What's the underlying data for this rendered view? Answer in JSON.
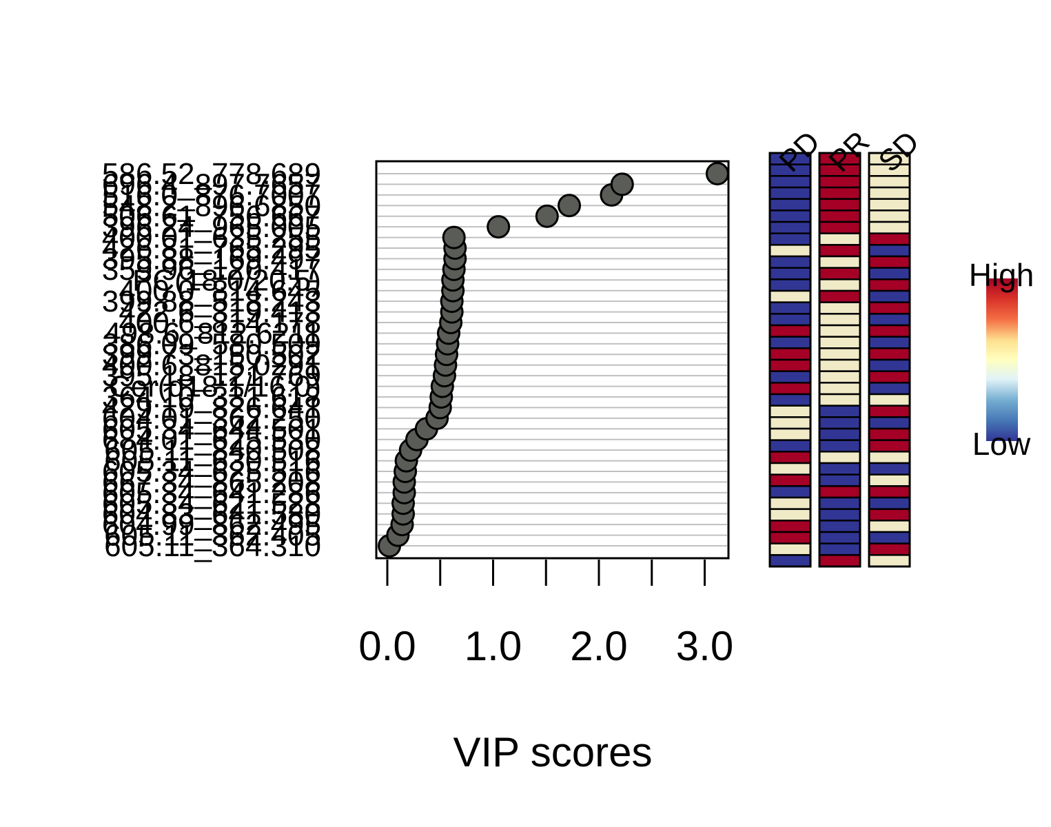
{
  "chart_data": {
    "type": "scatter",
    "xlabel": "VIP scores",
    "x_ticks": [
      "0.0",
      "1.0",
      "2.0",
      "3.0"
    ],
    "xlim": [
      0,
      3.2
    ],
    "features": [
      {
        "label": "586.52_778.689",
        "vip": 3.12,
        "groups": [
          "low",
          "high",
          "mid"
        ]
      },
      {
        "label": "696.4_897.7657",
        "vip": 2.22,
        "groups": [
          "low",
          "high",
          "mid"
        ]
      },
      {
        "label": "516.0_876.7007",
        "vip": 2.12,
        "groups": [
          "low",
          "high",
          "mid"
        ]
      },
      {
        "label": "548.2_896.6850",
        "vip": 1.72,
        "groups": [
          "low",
          "high",
          "mid"
        ]
      },
      {
        "label": "506.61_756.667",
        "vip": 1.51,
        "groups": [
          "low",
          "high",
          "mid"
        ]
      },
      {
        "label": "396.24_965.005",
        "vip": 1.05,
        "groups": [
          "low",
          "high",
          "mid"
        ]
      },
      {
        "label": "400.01_635.255",
        "vip": 0.63,
        "groups": [
          "low",
          "high",
          "mid"
        ]
      },
      {
        "label": "426.81_765.295",
        "vip": 0.64,
        "groups": [
          "low",
          "mid",
          "high"
        ]
      },
      {
        "label": "395.88_169.497",
        "vip": 0.64,
        "groups": [
          "mid",
          "high",
          "low"
        ]
      },
      {
        "label": "359.96_120.417",
        "vip": 0.63,
        "groups": [
          "low",
          "mid",
          "high"
        ]
      },
      {
        "label": "PC(18:0/20:5)",
        "vip": 0.62,
        "groups": [
          "low",
          "high",
          "low"
        ]
      },
      {
        "label": "400.0_814.645",
        "vip": 0.62,
        "groups": [
          "low",
          "mid",
          "high"
        ]
      },
      {
        "label": "399.88_518.243",
        "vip": 0.61,
        "groups": [
          "mid",
          "high",
          "low"
        ]
      },
      {
        "label": "422.6_319.413",
        "vip": 0.61,
        "groups": [
          "low",
          "mid",
          "high"
        ]
      },
      {
        "label": "400.6_814.178",
        "vip": 0.6,
        "groups": [
          "low",
          "mid",
          "low"
        ]
      },
      {
        "label": "498.6_812.6211",
        "vip": 0.58,
        "groups": [
          "high",
          "mid",
          "high"
        ]
      },
      {
        "label": "386.09_580.509",
        "vip": 0.57,
        "groups": [
          "low",
          "mid",
          "low"
        ]
      },
      {
        "label": "399.73_150.502",
        "vip": 0.56,
        "groups": [
          "high",
          "mid",
          "high"
        ]
      },
      {
        "label": "400.6_815.0291",
        "vip": 0.55,
        "groups": [
          "high",
          "mid",
          "low"
        ]
      },
      {
        "label": "395.18_121.769",
        "vip": 0.54,
        "groups": [
          "low",
          "mid",
          "high"
        ]
      },
      {
        "label": "Cer(d18:1/16:0)",
        "vip": 0.52,
        "groups": [
          "high",
          "mid",
          "low"
        ]
      },
      {
        "label": "364.10_331.618",
        "vip": 0.51,
        "groups": [
          "low",
          "mid",
          "mid"
        ]
      },
      {
        "label": "429.19_826.641",
        "vip": 0.5,
        "groups": [
          "mid",
          "low",
          "high"
        ]
      },
      {
        "label": "604.01_362.250",
        "vip": 0.47,
        "groups": [
          "mid",
          "low",
          "low"
        ]
      },
      {
        "label": "605.34_644.501",
        "vip": 0.37,
        "groups": [
          "mid",
          "low",
          "high"
        ]
      },
      {
        "label": "684.01_625.530",
        "vip": 0.28,
        "groups": [
          "low",
          "low",
          "high"
        ]
      },
      {
        "label": "605.11_840.508",
        "vip": 0.22,
        "groups": [
          "high",
          "mid",
          "mid"
        ]
      },
      {
        "label": "605.11_630.516",
        "vip": 0.18,
        "groups": [
          "mid",
          "low",
          "low"
        ]
      },
      {
        "label": "605.34_625.516",
        "vip": 0.17,
        "groups": [
          "high",
          "low",
          "mid"
        ]
      },
      {
        "label": "667.34_865.208",
        "vip": 0.16,
        "groups": [
          "low",
          "high",
          "high"
        ]
      },
      {
        "label": "605.34_641.286",
        "vip": 0.16,
        "groups": [
          "mid",
          "low",
          "low"
        ]
      },
      {
        "label": "605.34_621.528",
        "vip": 0.15,
        "groups": [
          "mid",
          "low",
          "high"
        ]
      },
      {
        "label": "604.83_641.580",
        "vip": 0.15,
        "groups": [
          "high",
          "low",
          "mid"
        ]
      },
      {
        "label": "604.99_862.495",
        "vip": 0.14,
        "groups": [
          "high",
          "low",
          "low"
        ]
      },
      {
        "label": "605.11_362.405",
        "vip": 0.1,
        "groups": [
          "mid",
          "low",
          "high"
        ]
      },
      {
        "label": "605.11_364.310",
        "vip": 0.02,
        "groups": [
          "low",
          "high",
          "mid"
        ]
      }
    ],
    "group_labels": [
      "PD",
      "PR",
      "SD"
    ],
    "legend": {
      "high_label": "High",
      "low_label": "Low"
    },
    "colors": {
      "high": "#A50026",
      "mid": "#F0EAC7",
      "low": "#313695",
      "point_fill": "#5A5C58",
      "grid": "#C0C0C0"
    },
    "grid": true
  }
}
